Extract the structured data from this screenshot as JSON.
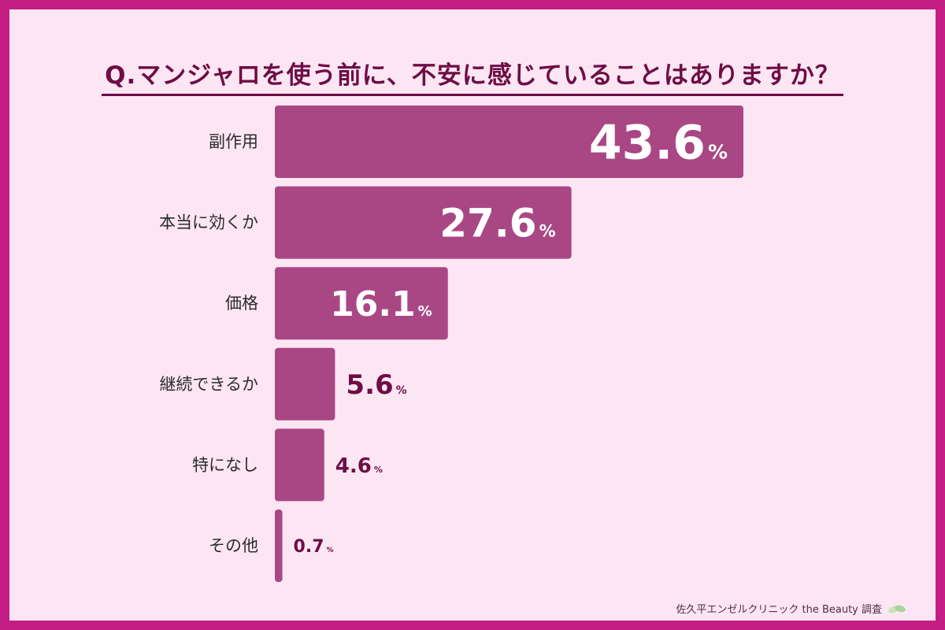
{
  "title": "Q.マンジャロを使う前に、不安に感じていることはありますか？",
  "credit": "佐久平エンゼルクリニック the Beauty 調査",
  "colors": {
    "background": "#fde6f3",
    "border": "#c41e84",
    "bar": "#a94785",
    "text_dark": "#6e0d44"
  },
  "chart_data": {
    "type": "bar",
    "orientation": "horizontal",
    "categories": [
      "副作用",
      "本当に効くか",
      "価格",
      "継続できるか",
      "特になし",
      "その他"
    ],
    "values": [
      43.6,
      27.6,
      16.1,
      5.6,
      4.6,
      0.7
    ],
    "unit": "%",
    "title": "Q.マンジャロを使う前に、不安に感じていることはありますか？",
    "xlabel": "",
    "ylabel": "",
    "grid": false
  }
}
